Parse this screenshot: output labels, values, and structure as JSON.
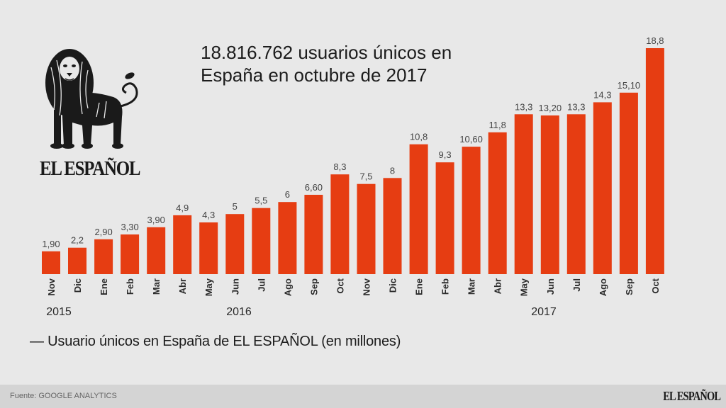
{
  "header": {
    "title_line1": "18.816.762 usuarios únicos en",
    "title_line2": "España en octubre de 2017"
  },
  "logo": {
    "icon": "lion-icon",
    "brand": "EL ESPAÑOL"
  },
  "legend": {
    "text": "— Usuario únicos en España de EL ESPAÑOL (en millones)"
  },
  "footer": {
    "source": "Fuente: GOOGLE ANALYTICS",
    "brand": "EL ESPAÑOL"
  },
  "colors": {
    "bar": "#e63d12",
    "background": "#e8e8e8",
    "footer_bg": "#d4d4d4",
    "label_text": "#444444",
    "axis_text": "#2a2a2a"
  },
  "chart_data": {
    "type": "bar",
    "title": "18.816.762 usuarios únicos en España en octubre de 2017",
    "xlabel": "",
    "ylabel": "",
    "legend": "Usuario únicos en España de EL ESPAÑOL (en millones)",
    "legend_position": "bottom-left",
    "grid": false,
    "ylim": [
      0,
      18.8
    ],
    "categories": [
      "Nov",
      "Dic",
      "Ene",
      "Feb",
      "Mar",
      "Abr",
      "May",
      "Jun",
      "Jul",
      "Ago",
      "Sep",
      "Oct",
      "Nov",
      "Dic",
      "Ene",
      "Feb",
      "Mar",
      "Abr",
      "May",
      "Jun",
      "Jul",
      "Ago",
      "Sep",
      "Oct"
    ],
    "values": [
      1.9,
      2.2,
      2.9,
      3.3,
      3.9,
      4.9,
      4.3,
      5.0,
      5.5,
      6.0,
      6.6,
      8.3,
      7.5,
      8.0,
      10.8,
      9.3,
      10.6,
      11.8,
      13.3,
      13.2,
      13.3,
      14.3,
      15.1,
      18.8
    ],
    "value_labels": [
      "1,90",
      "2,2",
      "2,90",
      "3,30",
      "3,90",
      "4,9",
      "4,3",
      "5",
      "5,5",
      "6",
      "6,60",
      "8,3",
      "7,5",
      "8",
      "10,8",
      "9,3",
      "10,60",
      "11,8",
      "13,3",
      "13,20",
      "13,3",
      "14,3",
      "15,10",
      "18,8"
    ],
    "year_groups": [
      {
        "label": "2015",
        "start_index": 0,
        "end_index": 1
      },
      {
        "label": "2016",
        "start_index": 2,
        "end_index": 13
      },
      {
        "label": "2017",
        "start_index": 14,
        "end_index": 23
      }
    ],
    "year_labels": [
      "2015",
      "2016",
      "2017"
    ]
  }
}
